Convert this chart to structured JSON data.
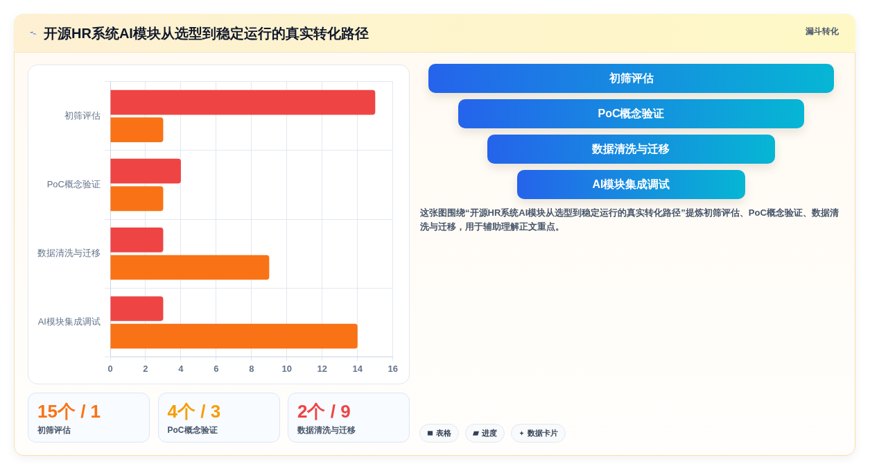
{
  "chart_data": [
    {
      "type": "bar",
      "title": "开源HR系统AI模块从选型到稳定运行的真实转化路径",
      "orientation": "horizontal",
      "categories": [
        "初筛评估",
        "PoC概念验证",
        "数据清洗与迁移",
        "AI模块集成调试"
      ],
      "series": [
        {
          "color": "#ef4444",
          "values": [
            15,
            4,
            3,
            3
          ]
        },
        {
          "color": "#f97316",
          "values": [
            3,
            3,
            9,
            14
          ]
        }
      ],
      "xlim": [
        0,
        16
      ],
      "xticks": [
        0,
        2,
        4,
        6,
        8,
        10,
        12,
        14,
        16
      ],
      "grid": true,
      "annotations": [
        "漏斗转化"
      ]
    },
    {
      "type": "other",
      "categories": [
        "初筛评估",
        "PoC概念验证",
        "数据清洗与迁移",
        "AI模块集成调试"
      ],
      "annotations": [
        "这张图围绕“开源HR系统AI模块从选型到稳定运行的真实转化路径”提炼初筛评估、PoC概念验证、数据清洗与迁移，用于辅助理解正文重点。",
        "表格",
        "进度",
        "数据卡片"
      ]
    },
    {
      "type": "other",
      "categories": [
        "初筛评估",
        "PoC概念验证",
        "数据清洗与迁移"
      ],
      "annotations": [
        "15个 / 1",
        "4个 / 3",
        "2个 / 9"
      ]
    }
  ]
}
